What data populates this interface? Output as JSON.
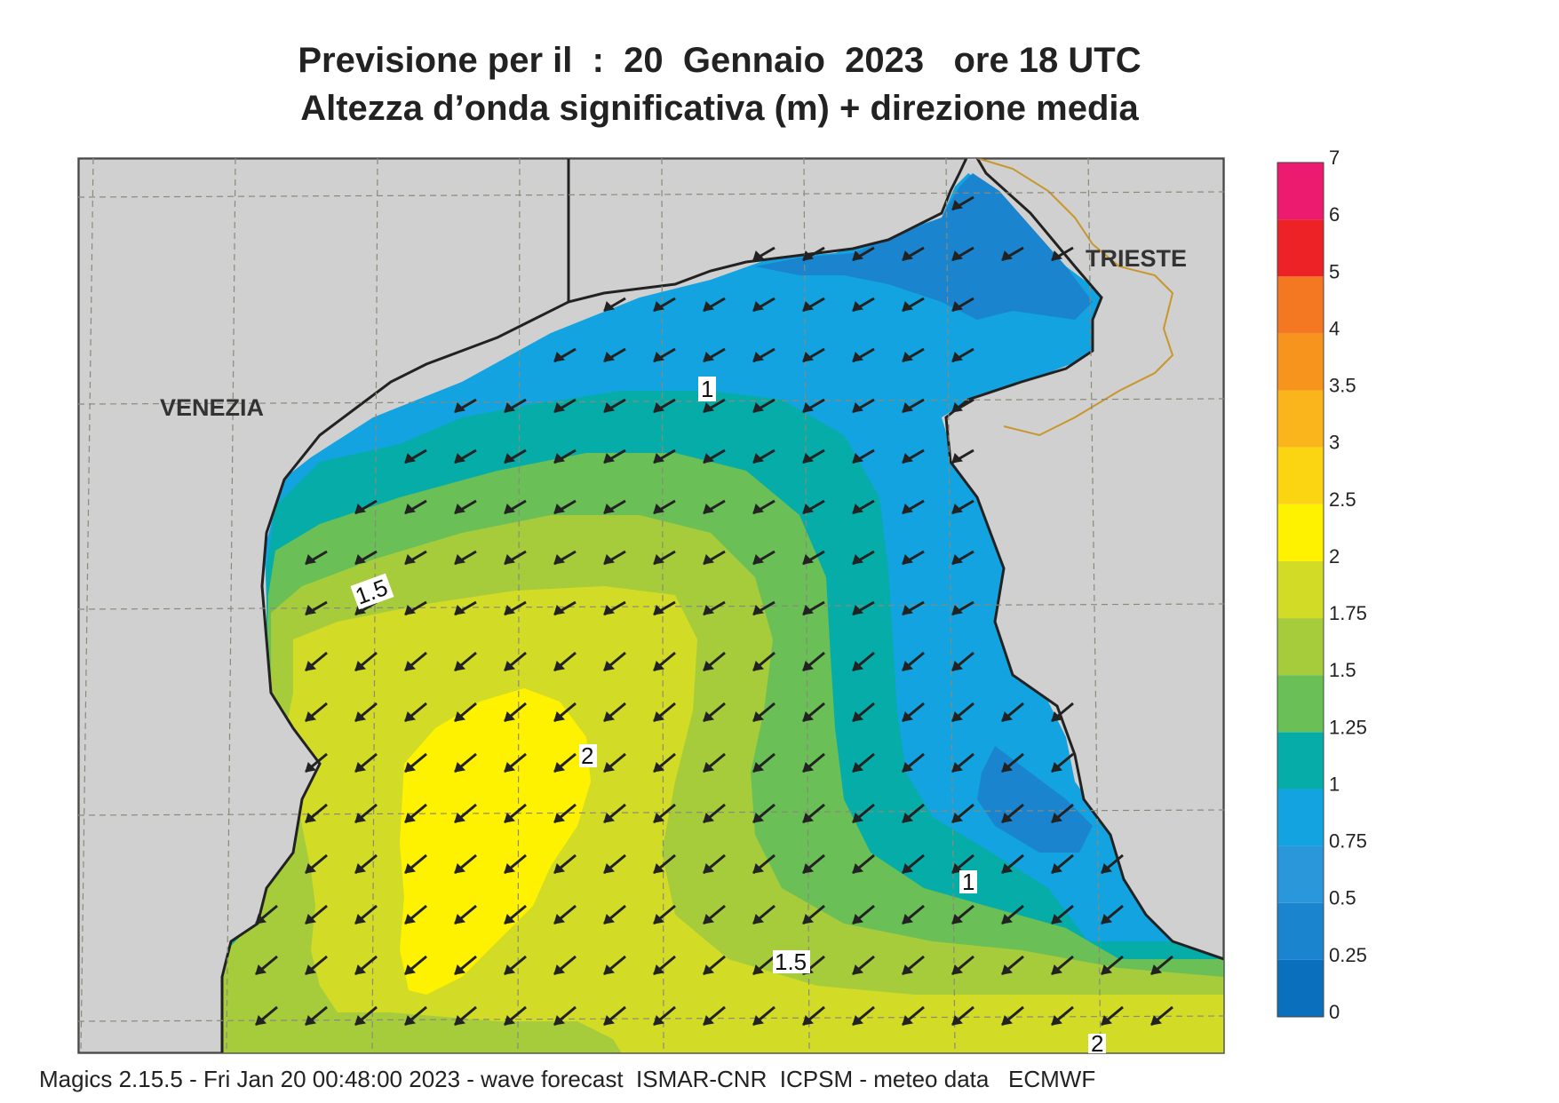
{
  "title_line1": "Previsione per il  :  20  Gennaio  2023   ore 18 UTC",
  "title_line2": "Altezza d’onda significativa (m) + direzione media",
  "footer": "Magics 2.15.5 - Fri Jan 20 00:48:00 2023 - wave forecast  ISMAR-CNR  ICPSM - meteo data   ECMWF",
  "cities": {
    "venezia": "VENEZIA",
    "trieste": "TRIESTE"
  },
  "contour_labels": {
    "c1a": "1",
    "c1b": "1",
    "c15a": "1.5",
    "c15b": "1.5",
    "c2a": "2",
    "c2b": "2"
  },
  "colorbar": {
    "ticks": [
      "0",
      "0.25",
      "0.5",
      "0.75",
      "1",
      "1.25",
      "1.5",
      "1.75",
      "2",
      "2.5",
      "3",
      "3.5",
      "4",
      "5",
      "6",
      "7"
    ],
    "colors": [
      "#0a6fbc",
      "#1a84cf",
      "#2a97da",
      "#12a3e0",
      "#06ada8",
      "#6abf56",
      "#a6cc3c",
      "#d2dc27",
      "#fff200",
      "#fcd512",
      "#f9b51b",
      "#f7941d",
      "#f47721",
      "#ec2227",
      "#ec1b70"
    ]
  },
  "wave_direction": "toward-southwest",
  "land_color": "#d0d0d0",
  "coast_color": "#222222",
  "border_color": "#c8962a"
}
